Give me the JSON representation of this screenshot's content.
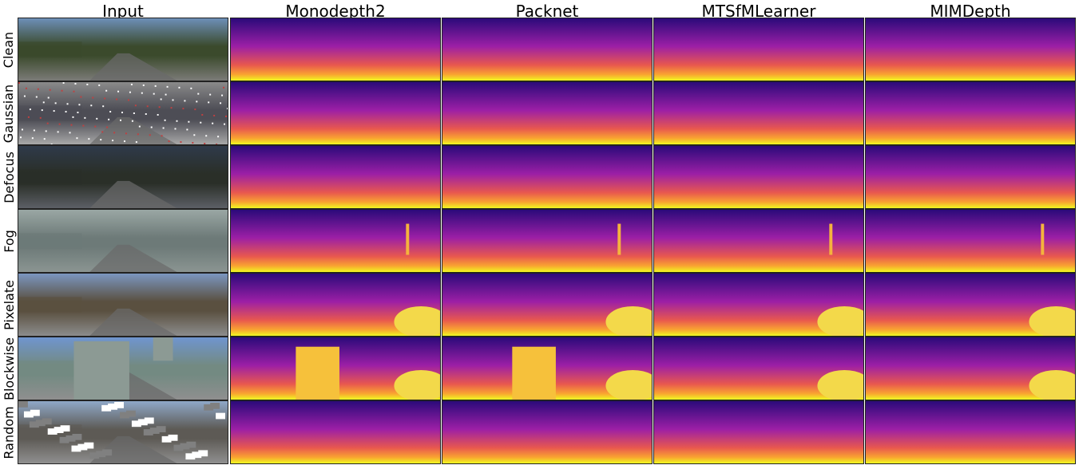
{
  "columns": [
    "Input",
    "Monodepth2",
    "Packnet",
    "MTSfMLearner",
    "MIMDepth"
  ],
  "rows": [
    "Clean",
    "Gaussian",
    "Defocus",
    "Fog",
    "Pixelate",
    "Blockwise",
    "Random"
  ],
  "colormap": {
    "far": "#2b0a7a",
    "mid": "#9c1fa6",
    "near": "#f0f921"
  }
}
